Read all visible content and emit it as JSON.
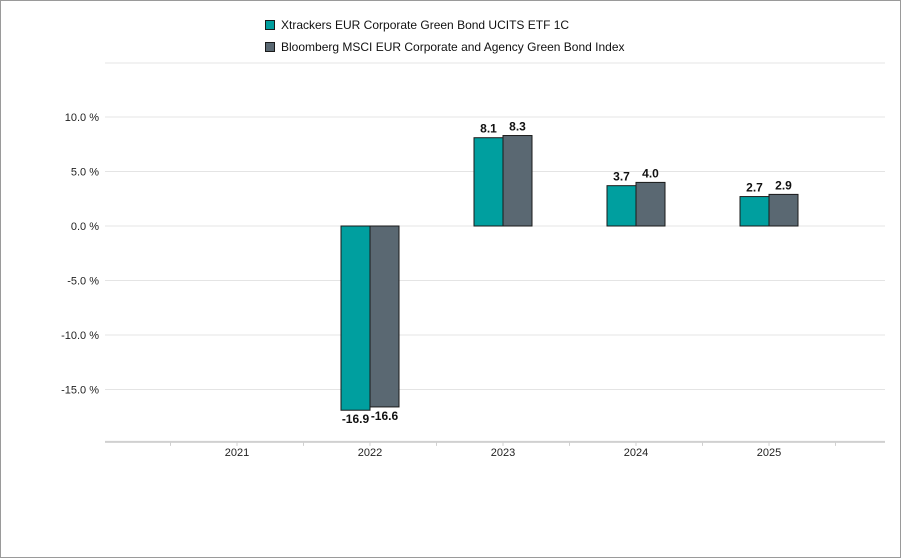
{
  "chart_data": {
    "type": "bar",
    "categories": [
      "2021",
      "2022",
      "2023",
      "2024",
      "2025"
    ],
    "series": [
      {
        "name": "Xtrackers EUR Corporate Green Bond UCITS ETF 1C",
        "color": "#009f9f",
        "values": [
          null,
          -16.9,
          8.1,
          3.7,
          2.7
        ],
        "labels": [
          "",
          "-16.9",
          "8.1",
          "3.7",
          "2.7"
        ]
      },
      {
        "name": "Bloomberg MSCI EUR Corporate and Agency Green Bond Index",
        "color": "#5a6872",
        "values": [
          null,
          -16.6,
          8.3,
          4.0,
          2.9
        ],
        "labels": [
          "",
          "-16.6",
          "8.3",
          "4.0",
          "2.9"
        ]
      }
    ],
    "yticks": [
      10,
      5,
      0,
      -5,
      -10,
      -15
    ],
    "ytick_labels": [
      "10.0 %",
      "5.0 %",
      "0.0 %",
      "-5.0 %",
      "-10.0 %",
      "-15.0 %"
    ],
    "ylim": [
      -19.8,
      10.7
    ],
    "grid": true,
    "legend_position": "top"
  }
}
